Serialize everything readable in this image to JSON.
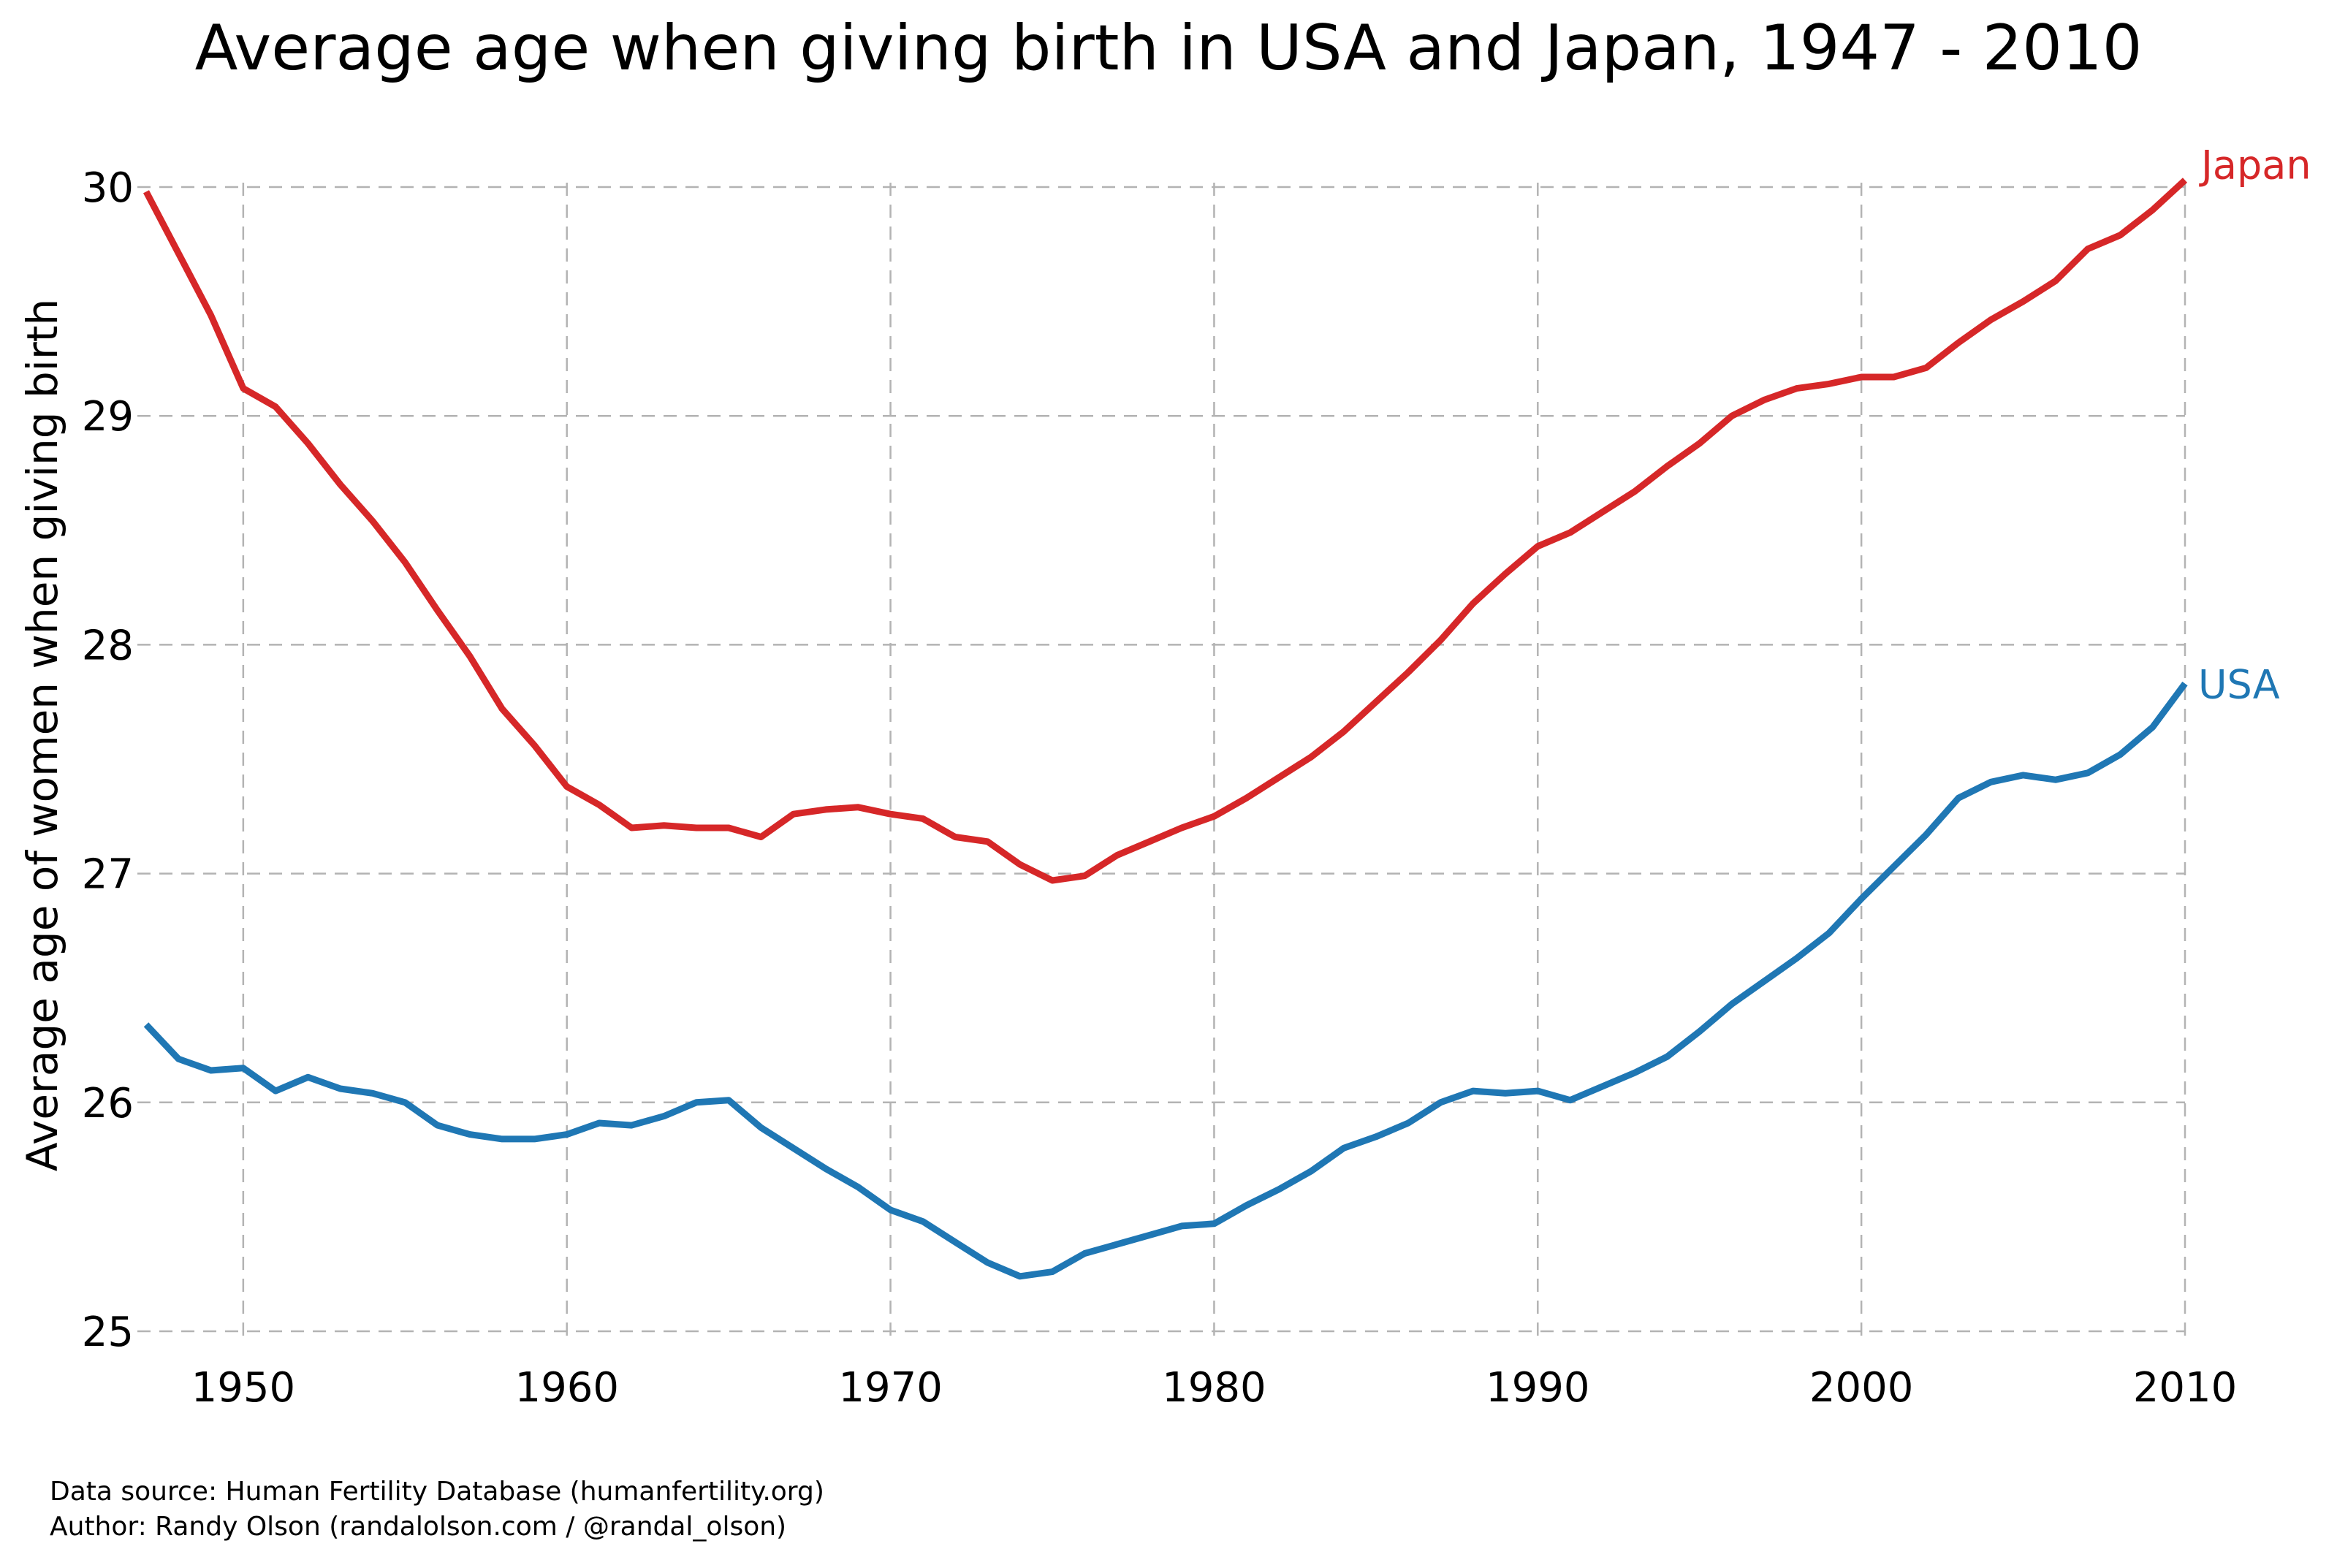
{
  "chart_data": {
    "type": "line",
    "title": "Average age when giving birth in USA and Japan, 1947 - 2010",
    "xlabel": "",
    "ylabel": "Average age of women when giving birth",
    "xlim": [
      1947,
      2010
    ],
    "ylim": [
      25,
      30
    ],
    "x_ticks": [
      1950,
      1960,
      1970,
      1980,
      1990,
      2000,
      2010
    ],
    "y_ticks": [
      25,
      26,
      27,
      28,
      29,
      30
    ],
    "grid": true,
    "grid_style": "dashed",
    "legend": "direct labels at line ends (right)",
    "x": [
      1947,
      1948,
      1949,
      1950,
      1951,
      1952,
      1953,
      1954,
      1955,
      1956,
      1957,
      1958,
      1959,
      1960,
      1961,
      1962,
      1963,
      1964,
      1965,
      1966,
      1967,
      1968,
      1969,
      1970,
      1971,
      1972,
      1973,
      1974,
      1975,
      1976,
      1977,
      1978,
      1979,
      1980,
      1981,
      1982,
      1983,
      1984,
      1985,
      1986,
      1987,
      1988,
      1989,
      1990,
      1991,
      1992,
      1993,
      1994,
      1995,
      1996,
      1997,
      1998,
      1999,
      2000,
      2001,
      2002,
      2003,
      2004,
      2005,
      2006,
      2007,
      2008,
      2009,
      2010
    ],
    "series": [
      {
        "name": "Japan",
        "color": "#d62728",
        "values": [
          29.98,
          29.71,
          29.44,
          29.12,
          29.04,
          28.88,
          28.7,
          28.54,
          28.36,
          28.15,
          27.95,
          27.72,
          27.56,
          27.38,
          27.3,
          27.2,
          27.21,
          27.2,
          27.2,
          27.16,
          27.26,
          27.28,
          27.29,
          27.26,
          27.24,
          27.16,
          27.14,
          27.04,
          26.97,
          26.99,
          27.08,
          27.14,
          27.2,
          27.25,
          27.33,
          27.42,
          27.51,
          27.62,
          27.75,
          27.88,
          28.02,
          28.18,
          28.31,
          28.43,
          28.49,
          28.58,
          28.67,
          28.78,
          28.88,
          29.0,
          29.07,
          29.12,
          29.14,
          29.17,
          29.17,
          29.21,
          29.32,
          29.42,
          29.5,
          29.59,
          29.73,
          29.79,
          29.9,
          30.03
        ]
      },
      {
        "name": "USA",
        "color": "#1f77b4",
        "values": [
          26.34,
          26.19,
          26.14,
          26.15,
          26.05,
          26.11,
          26.06,
          26.04,
          26.0,
          25.9,
          25.86,
          25.84,
          25.84,
          25.86,
          25.91,
          25.9,
          25.94,
          26.0,
          26.01,
          25.89,
          25.8,
          25.71,
          25.63,
          25.53,
          25.48,
          25.39,
          25.3,
          25.24,
          25.26,
          25.34,
          25.38,
          25.42,
          25.46,
          25.47,
          25.55,
          25.62,
          25.7,
          25.8,
          25.85,
          25.91,
          26.0,
          26.05,
          26.04,
          26.05,
          26.01,
          26.07,
          26.13,
          26.2,
          26.31,
          26.43,
          26.53,
          26.63,
          26.74,
          26.89,
          27.03,
          27.17,
          27.33,
          27.4,
          27.43,
          27.41,
          27.44,
          27.52,
          27.64,
          27.83
        ]
      }
    ]
  },
  "credits": {
    "line1": "Data source: Human Fertility Database (humanfertility.org)",
    "line2": "Author: Randy Olson (randalolson.com / @randal_olson)"
  }
}
